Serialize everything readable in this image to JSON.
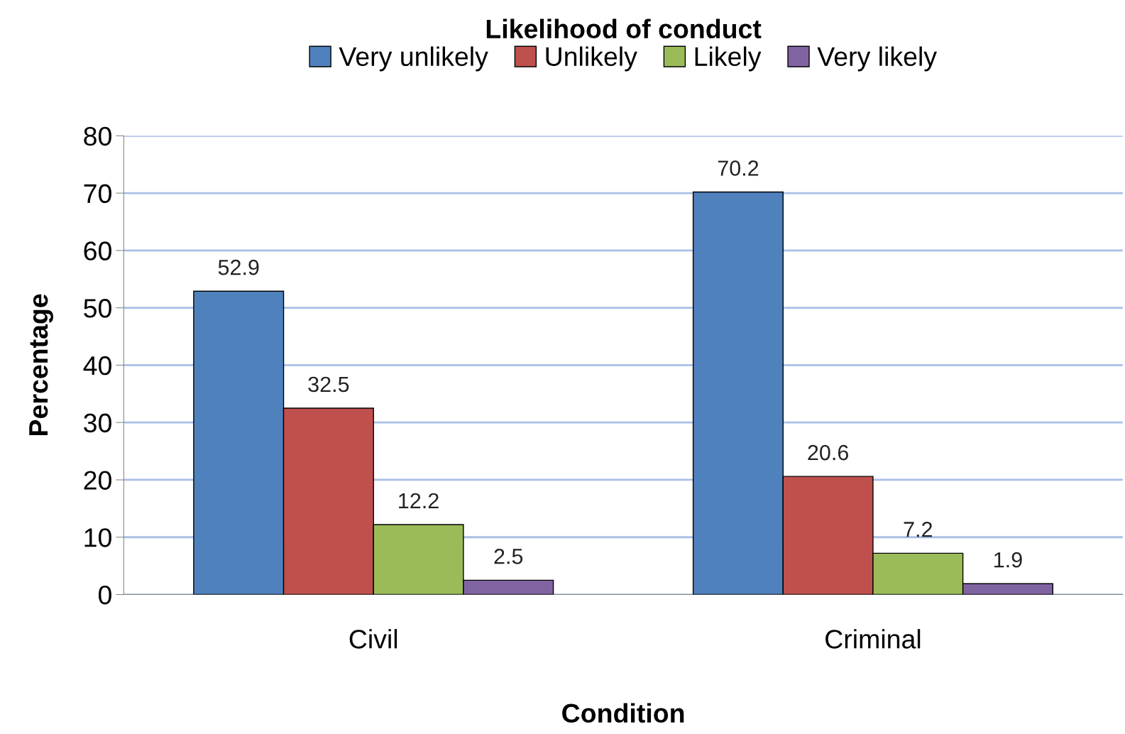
{
  "chart_data": {
    "type": "bar",
    "xlabel": "Condition",
    "ylabel": "Percentage",
    "legend_title": "Likelihood of conduct",
    "categories": [
      "Civil",
      "Criminal"
    ],
    "series": [
      {
        "name": "Very unlikely",
        "color": "#4f81bd",
        "values": [
          52.9,
          70.2
        ]
      },
      {
        "name": "Unlikely",
        "color": "#c0504d",
        "values": [
          32.5,
          20.6
        ]
      },
      {
        "name": "Likely",
        "color": "#9bbb59",
        "values": [
          12.2,
          7.2
        ]
      },
      {
        "name": "Very likely",
        "color": "#8064a2",
        "values": [
          2.5,
          1.9
        ]
      }
    ],
    "ylim": [
      0,
      80
    ],
    "yticks": [
      0,
      10,
      20,
      30,
      40,
      50,
      60,
      70,
      80
    ],
    "grid": "y",
    "legend": "top",
    "data_labels": true
  }
}
